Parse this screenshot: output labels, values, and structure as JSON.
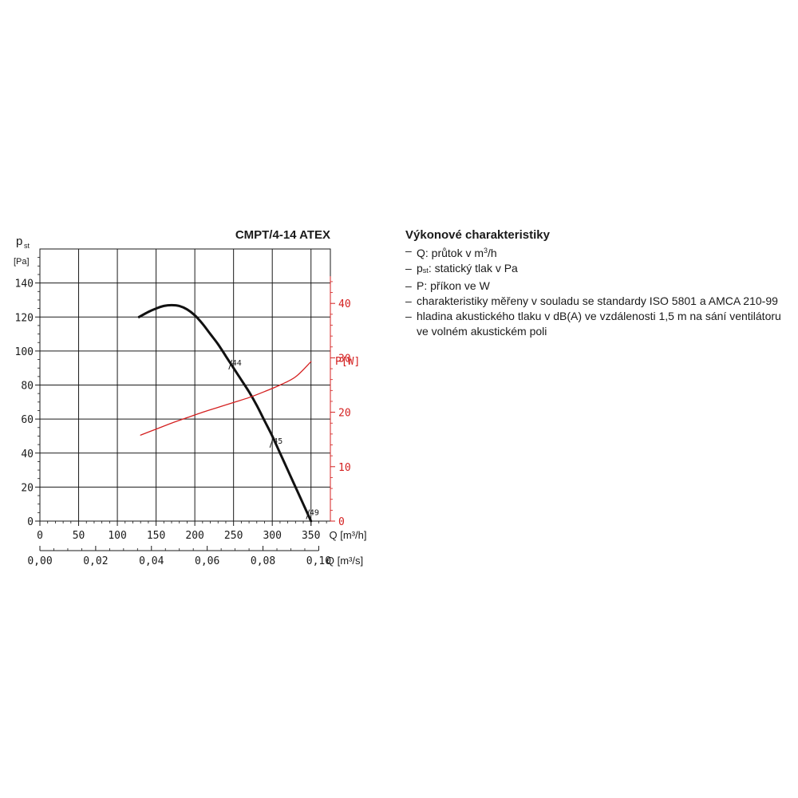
{
  "chart_data": {
    "type": "line",
    "title": "CMPT/4-14 ATEX",
    "y_left": {
      "symbol": "p",
      "symbol_sub": "st",
      "unit": "[Pa]",
      "ylim": [
        0,
        160
      ],
      "ticks": [
        0,
        20,
        40,
        60,
        80,
        100,
        120,
        140
      ]
    },
    "y_right": {
      "label": "P[W]",
      "ylim": [
        0,
        50
      ],
      "ticks": [
        0,
        10,
        20,
        30,
        40
      ]
    },
    "x_primary": {
      "label": "Q [m³/h]",
      "xlim": [
        0,
        375
      ],
      "ticks": [
        0,
        50,
        100,
        150,
        200,
        250,
        300,
        350
      ]
    },
    "x_secondary": {
      "label": "Q [m³/s]",
      "ticks": [
        "0,00",
        "0,02",
        "0,04",
        "0,06",
        "0,08",
        "0,10"
      ],
      "tick_values_m3h": [
        0,
        72,
        144,
        216,
        288,
        360
      ]
    },
    "grid": true,
    "series": [
      {
        "axis": "left",
        "color": "#111111",
        "x": [
          128,
          140,
          150,
          160,
          170,
          180,
          190,
          200,
          210,
          220,
          230,
          240,
          250,
          260,
          270,
          280,
          290,
          300,
          310,
          320,
          330,
          340,
          350
        ],
        "y": [
          120,
          123,
          125,
          126.5,
          127,
          126.5,
          124.5,
          121,
          116,
          110,
          104,
          97,
          90,
          83,
          76,
          68,
          59,
          50,
          40,
          30,
          20,
          10,
          0
        ]
      },
      {
        "axis": "right",
        "color": "#d42020",
        "x": [
          130,
          150,
          170,
          190,
          210,
          230,
          250,
          270,
          290,
          310,
          330,
          350
        ],
        "y": [
          15.8,
          16.9,
          18.0,
          19.0,
          20.0,
          20.9,
          21.8,
          22.7,
          23.8,
          25.0,
          26.5,
          29.3
        ]
      }
    ],
    "annotations": [
      {
        "text": "44",
        "x": 247,
        "y": 92
      },
      {
        "text": "45",
        "x": 300,
        "y": 46
      },
      {
        "text": "49",
        "x": 347,
        "y": 4
      }
    ]
  },
  "legend": {
    "title": "Výkonové charakteristiky",
    "dash": "–",
    "items": [
      {
        "text": "Q: průtok v m",
        "sup": "3",
        "tail": "/h"
      },
      {
        "text": "p",
        "sub": "st",
        "tail": ": statický tlak v Pa"
      },
      {
        "text": "P: příkon ve W"
      },
      {
        "text": "charakteristiky měřeny v souladu se standardy ISO 5801 a AMCA 210-99"
      },
      {
        "text": "hladina akustického tlaku v dB(A) ve vzdálenosti 1,5 m na sání ventilátoru ve volném akustickém poli"
      }
    ]
  }
}
